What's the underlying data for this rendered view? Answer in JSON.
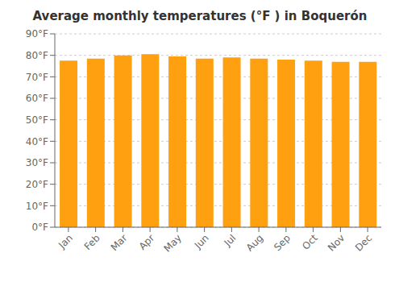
{
  "chart_data": {
    "type": "bar",
    "title": "Average monthly temperatures (°F ) in Boquerón",
    "categories": [
      "Jan",
      "Feb",
      "Mar",
      "Apr",
      "May",
      "Jun",
      "Jul",
      "Aug",
      "Sep",
      "Oct",
      "Nov",
      "Dec"
    ],
    "values": [
      77.5,
      78.5,
      80.0,
      80.5,
      79.5,
      78.5,
      79.0,
      78.5,
      78.0,
      77.5,
      77.0,
      77.0
    ],
    "color": "#FFA010",
    "ylim": [
      0,
      90
    ],
    "yticks": [
      {
        "value": 0,
        "label": "0°F"
      },
      {
        "value": 10,
        "label": "10°F"
      },
      {
        "value": 20,
        "label": "20°F"
      },
      {
        "value": 30,
        "label": "30°F"
      },
      {
        "value": 40,
        "label": "40°F"
      },
      {
        "value": 50,
        "label": "50°F"
      },
      {
        "value": 60,
        "label": "60°F"
      },
      {
        "value": 70,
        "label": "70°F"
      },
      {
        "value": 80,
        "label": "80°F"
      },
      {
        "value": 90,
        "label": "90°F"
      }
    ],
    "grid": true
  }
}
